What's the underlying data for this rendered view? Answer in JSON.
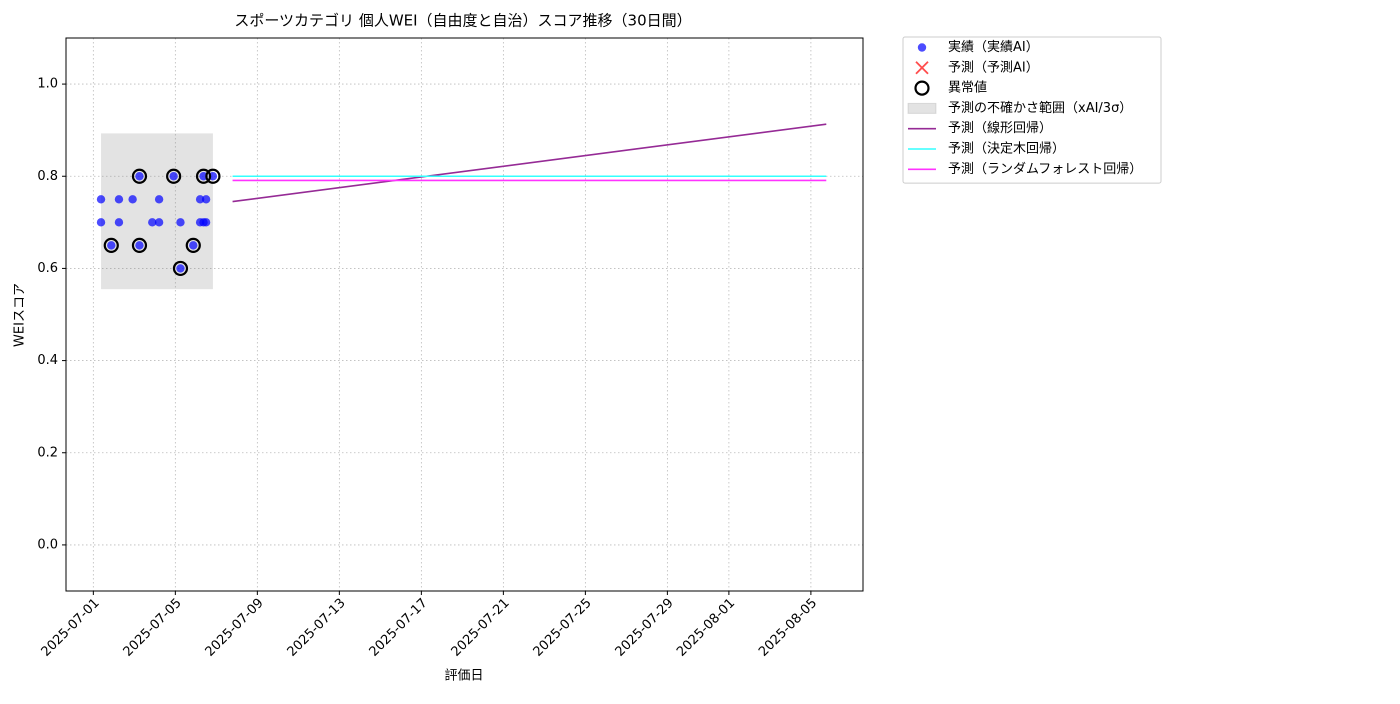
{
  "chart_data": {
    "type": "scatter",
    "title": "スポーツカテゴリ 個人WEI（自由度と自治）スコア推移（30日間）",
    "x_label": "評価日",
    "y_label": "WEIスコア",
    "xlim": [
      "2025-06-29 16:00",
      "2025-08-07 13:00"
    ],
    "xticks": [
      "2025-07-01",
      "2025-07-05",
      "2025-07-09",
      "2025-07-13",
      "2025-07-17",
      "2025-07-21",
      "2025-07-25",
      "2025-07-29",
      "2025-08-01",
      "2025-08-05"
    ],
    "ylim": [
      -0.1,
      1.1
    ],
    "yticks": [
      {
        "value": 0,
        "label": "0.0"
      },
      0.2,
      0.4,
      0.6,
      0.8,
      {
        "value": 1,
        "label": "1.0"
      }
    ],
    "grid": true,
    "legend": "outside-right",
    "series": [
      {
        "name": "実績（実績AI）",
        "type": "scatter",
        "color": "#0000ff",
        "alpha": 0.7,
        "x": [
          "2025-07-01 09:00",
          "2025-07-01 09:00",
          "2025-07-01 21:00",
          "2025-07-02 06:00",
          "2025-07-02 06:00",
          "2025-07-02 22:00",
          "2025-07-03 06:00",
          "2025-07-03 06:00",
          "2025-07-03 21:00",
          "2025-07-04 05:00",
          "2025-07-04 05:00",
          "2025-07-04 22:00",
          "2025-07-05 06:00",
          "2025-07-05 06:00",
          "2025-07-05 21:00",
          "2025-07-06 05:00",
          "2025-07-06 05:00",
          "2025-07-06 09:00",
          "2025-07-06 09:00",
          "2025-07-06 12:00",
          "2025-07-06 12:00",
          "2025-07-06 20:00"
        ],
        "values": [
          0.75,
          0.7,
          0.65,
          0.75,
          0.7,
          0.75,
          0.8,
          0.65,
          0.7,
          0.75,
          0.7,
          0.8,
          0.7,
          0.6,
          0.65,
          0.75,
          0.7,
          0.8,
          0.7,
          0.75,
          0.7,
          0.8
        ]
      },
      {
        "name": "予測（予測AI）",
        "type": "cross",
        "color": "#ff0000",
        "alpha": 0.7,
        "x": [],
        "values": []
      },
      {
        "name": "異常値",
        "type": "outlier",
        "color": "#000000",
        "x": [
          "2025-07-01 21:00",
          "2025-07-03 06:00",
          "2025-07-03 06:00",
          "2025-07-04 22:00",
          "2025-07-05 06:00",
          "2025-07-05 21:00",
          "2025-07-06 09:00",
          "2025-07-06 20:00"
        ],
        "values": [
          0.65,
          0.8,
          0.65,
          0.8,
          0.6,
          0.65,
          0.8,
          0.8
        ]
      },
      {
        "name": "予測の不確かさ範囲（xAI/3σ）",
        "type": "band",
        "color": "#808080",
        "alpha": 0.22,
        "x": [
          "2025-07-01 09:00",
          "2025-07-06 20:00"
        ],
        "lower": [
          0.555,
          0.555
        ],
        "upper": [
          0.893,
          0.893
        ]
      },
      {
        "name": "予測（線形回帰）",
        "type": "line",
        "color": "#952a95",
        "x": [
          "2025-07-07 19:00",
          "2025-08-05 18:00"
        ],
        "values": [
          0.745,
          0.913
        ]
      },
      {
        "name": "予測（決定木回帰）",
        "type": "line",
        "color": "#33ffff",
        "x": [
          "2025-07-07 19:00",
          "2025-08-05 18:00"
        ],
        "values": [
          0.8,
          0.8
        ]
      },
      {
        "name": "予測（ランダムフォレスト回帰）",
        "type": "line",
        "color": "#ff33ff",
        "x": [
          "2025-07-07 19:00",
          "2025-08-05 18:00"
        ],
        "values": [
          0.791,
          0.791
        ]
      }
    ]
  }
}
